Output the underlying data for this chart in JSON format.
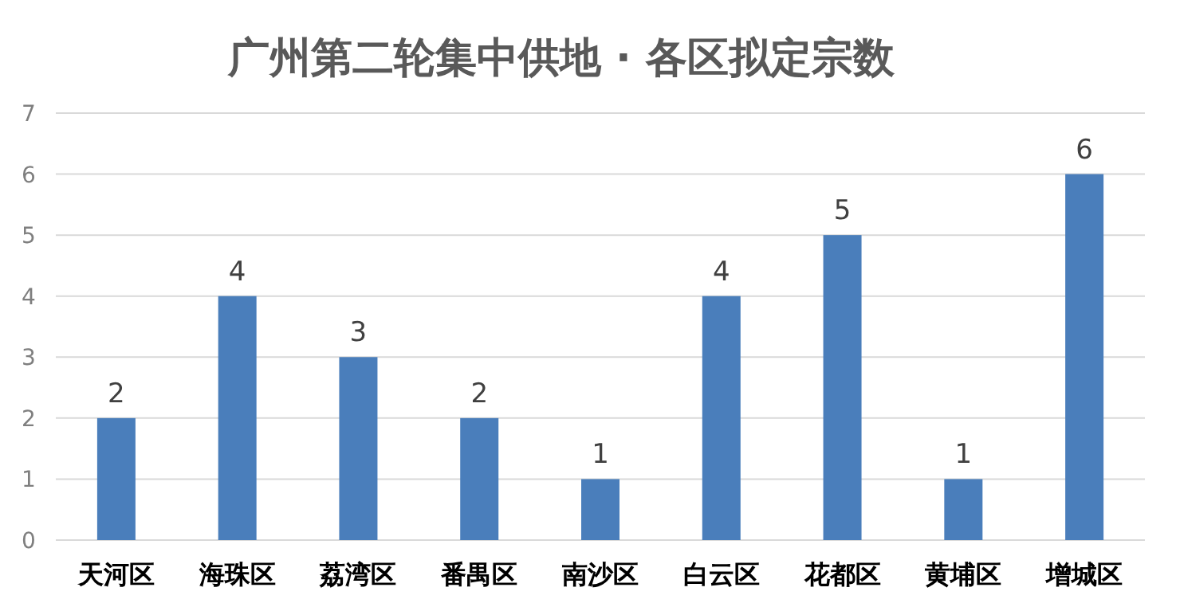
{
  "chart_data": {
    "type": "bar",
    "title": "广州第二轮集中供地 · 各区拟定宗数",
    "categories": [
      "天河区",
      "海珠区",
      "荔湾区",
      "番禺区",
      "南沙区",
      "白云区",
      "花都区",
      "黄埔区",
      "增城区"
    ],
    "values": [
      2,
      4,
      3,
      2,
      1,
      4,
      5,
      1,
      6
    ],
    "color": "#4a7ebb",
    "ylim": [
      0,
      7
    ],
    "yticks": [
      0,
      1,
      2,
      3,
      4,
      5,
      6,
      7
    ],
    "grid": "y",
    "data_labels": true
  }
}
